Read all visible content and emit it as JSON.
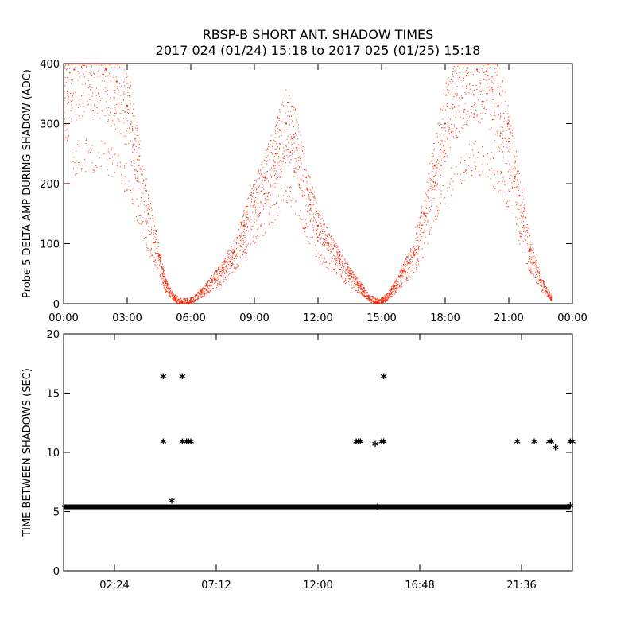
{
  "title_line1": "RBSP-B SHORT ANT. SHADOW TIMES",
  "title_line2": "2017 024 (01/24) 15:18 to 2017 025 (01/25) 15:18",
  "colors": {
    "top_points": "#ff2200",
    "bottom_points": "#000000",
    "axes": "#000000"
  },
  "chart_data": [
    {
      "type": "scatter",
      "ylabel": "Probe 5 DELTA AMP DURING SHADOW (ADC)",
      "xlim": [
        0,
        24
      ],
      "ylim": [
        0,
        400
      ],
      "x_tick_labels": [
        "00:00",
        "03:00",
        "06:00",
        "09:00",
        "12:00",
        "15:00",
        "18:00",
        "21:00",
        "00:00"
      ],
      "y_tick_labels": [
        "0",
        "100",
        "200",
        "300",
        "400"
      ],
      "marker_color": "#ff2200",
      "series": [
        {
          "x": [
            0.0,
            0.5,
            1.0,
            1.5,
            2.0,
            2.5,
            3.0,
            3.5,
            4.0,
            4.5,
            4.8,
            5.2,
            5.6,
            6.0,
            6.5,
            7.0,
            7.5,
            8.0,
            8.5,
            9.0,
            9.5,
            10.0,
            10.5,
            11.0,
            11.5,
            12.0,
            12.5,
            13.0,
            13.5,
            14.0,
            14.4,
            14.8,
            15.2,
            15.6,
            16.0,
            16.5,
            17.0,
            17.5,
            18.0,
            18.5,
            19.0,
            19.5,
            20.0,
            20.5,
            21.0,
            21.5,
            22.0,
            22.5,
            23.0
          ],
          "y": [
            330,
            390,
            400,
            400,
            390,
            370,
            330,
            240,
            150,
            80,
            35,
            10,
            3,
            5,
            20,
            40,
            60,
            85,
            130,
            170,
            210,
            250,
            300,
            260,
            190,
            130,
            100,
            75,
            50,
            30,
            10,
            3,
            10,
            30,
            55,
            85,
            150,
            230,
            300,
            350,
            380,
            390,
            380,
            330,
            270,
            180,
            90,
            40,
            10
          ]
        }
      ]
    },
    {
      "type": "scatter",
      "ylabel": "TIME BETWEEN SHADOWS (SEC)",
      "xlim": [
        0,
        24
      ],
      "ylim": [
        0,
        20
      ],
      "x_tick_labels": [
        "02:24",
        "07:12",
        "12:00",
        "16:48",
        "21:36"
      ],
      "y_tick_labels": [
        "0",
        "5",
        "10",
        "15",
        "20"
      ],
      "marker_color": "#000000",
      "baseline": {
        "x_start": 0.0,
        "x_end": 23.9,
        "y": 5.4
      },
      "series": [
        {
          "x": [
            4.7,
            4.7,
            5.1,
            5.6,
            5.6,
            5.8,
            5.9,
            6.0,
            13.8,
            13.9,
            14.0,
            14.7,
            14.8,
            15.0,
            15.1,
            15.1,
            21.4,
            22.2,
            22.9,
            23.0,
            23.2,
            23.9,
            24.0,
            23.9
          ],
          "y": [
            16.3,
            10.8,
            5.8,
            16.3,
            10.8,
            10.8,
            10.8,
            10.8,
            10.8,
            10.8,
            10.8,
            10.6,
            5.3,
            10.8,
            10.8,
            16.3,
            10.8,
            10.8,
            10.8,
            10.8,
            10.3,
            10.8,
            10.8,
            5.4
          ]
        }
      ]
    }
  ]
}
